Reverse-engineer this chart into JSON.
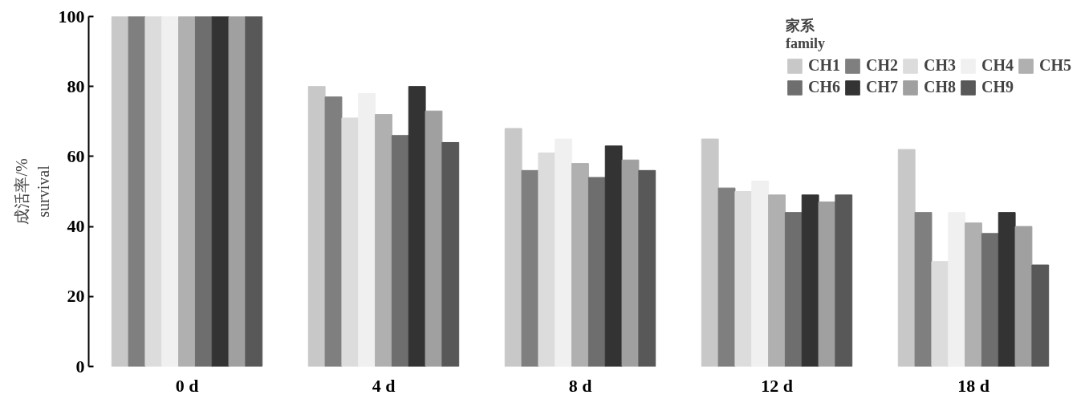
{
  "chart_data": {
    "type": "bar",
    "ylabel": "成活率/%\nsurvival",
    "legend_title": "家系\nfamily",
    "categories": [
      "0 d",
      "4 d",
      "8 d",
      "12 d",
      "18 d"
    ],
    "ylim": [
      0,
      100
    ],
    "yticks": [
      0,
      20,
      40,
      60,
      80,
      100
    ],
    "grid": false,
    "legend": "top right",
    "series": [
      {
        "name": "CH1",
        "color": "#c8c8c8",
        "values": [
          100,
          80,
          68,
          65,
          62
        ]
      },
      {
        "name": "CH2",
        "color": "#7f7f7f",
        "values": [
          100,
          77,
          56,
          51,
          44
        ]
      },
      {
        "name": "CH3",
        "color": "#dcdcdc",
        "values": [
          100,
          71,
          61,
          50,
          30
        ]
      },
      {
        "name": "CH4",
        "color": "#f0f0f0",
        "values": [
          100,
          78,
          65,
          53,
          44
        ]
      },
      {
        "name": "CH5",
        "color": "#b0b0b0",
        "values": [
          100,
          72,
          58,
          49,
          41
        ]
      },
      {
        "name": "CH6",
        "color": "#6e6e6e",
        "values": [
          100,
          66,
          54,
          44,
          38
        ]
      },
      {
        "name": "CH7",
        "color": "#333333",
        "values": [
          100,
          80,
          63,
          49,
          44
        ]
      },
      {
        "name": "CH8",
        "color": "#a0a0a0",
        "values": [
          100,
          73,
          59,
          47,
          40
        ]
      },
      {
        "name": "CH9",
        "color": "#585858",
        "values": [
          100,
          64,
          56,
          49,
          29
        ]
      }
    ]
  }
}
